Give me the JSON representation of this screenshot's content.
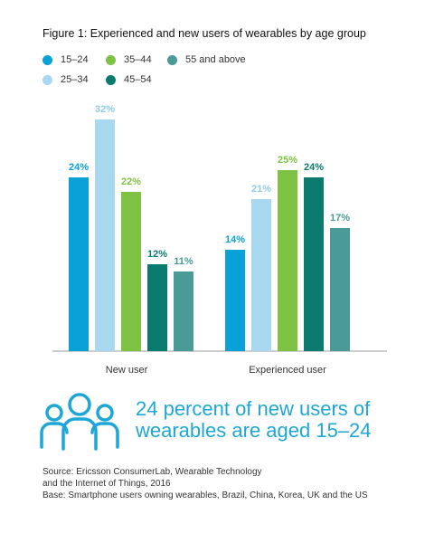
{
  "title": "Figure 1: Experienced and new users of wearables by age group",
  "colors": {
    "15-24": "#0aa1d8",
    "25-34": "#a8d8ef",
    "35-44": "#7dc242",
    "45-54": "#0b7a6f",
    "55plus": "#4a9a97",
    "callout": "#1ea7d6"
  },
  "chart_data": {
    "type": "bar",
    "categories": [
      "New user",
      "Experienced user"
    ],
    "series": [
      {
        "name": "15–24",
        "values": [
          24,
          14
        ]
      },
      {
        "name": "25–34",
        "values": [
          32,
          21
        ]
      },
      {
        "name": "35–44",
        "values": [
          22,
          25
        ]
      },
      {
        "name": "45–54",
        "values": [
          12,
          24
        ]
      },
      {
        "name": "55 and above",
        "values": [
          11,
          17
        ]
      }
    ],
    "value_labels": [
      [
        "24%",
        "14%"
      ],
      [
        "32%",
        "21%"
      ],
      [
        "22%",
        "25%"
      ],
      [
        "12%",
        "24%"
      ],
      [
        "11%",
        "17%"
      ]
    ],
    "ylim": [
      0,
      32
    ],
    "grid": false,
    "legend_position": "top-left"
  },
  "callout": {
    "icon": "people-group-icon",
    "text_line1": "24 percent of new users of",
    "text_line2": "wearables are aged 15–24"
  },
  "source": {
    "line1": "Source: Ericsson ConsumerLab, Wearable Technology",
    "line2": "and the Internet of Things, 2016",
    "line3": "Base: Smartphone users owning wearables, Brazil, China, Korea, UK and the US"
  }
}
